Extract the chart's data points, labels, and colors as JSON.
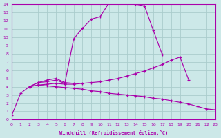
{
  "background_color": "#cce8e8",
  "line_color": "#aa00aa",
  "grid_color": "#aacccc",
  "xlabel": "Windchill (Refroidissement éolien,°C)",
  "xlim": [
    0,
    23
  ],
  "ylim": [
    0,
    14
  ],
  "xticks": [
    0,
    1,
    2,
    3,
    4,
    5,
    6,
    7,
    8,
    9,
    10,
    11,
    12,
    13,
    14,
    15,
    16,
    17,
    18,
    19,
    20,
    21,
    22,
    23
  ],
  "yticks": [
    0,
    1,
    2,
    3,
    4,
    5,
    6,
    7,
    8,
    9,
    10,
    11,
    12,
    13,
    14
  ],
  "curves": [
    {
      "x": [
        0,
        1,
        2,
        3,
        4,
        5,
        6,
        7,
        8,
        9,
        10,
        11,
        12,
        13,
        14,
        15,
        16,
        17
      ],
      "y": [
        0.5,
        3.2,
        4.0,
        4.5,
        4.6,
        4.8,
        4.4,
        9.8,
        11.1,
        12.2,
        12.5,
        14.2,
        14.3,
        14.3,
        14.0,
        13.8,
        10.8,
        7.9
      ]
    },
    {
      "x": [
        2,
        3,
        4,
        5,
        6,
        7
      ],
      "y": [
        4.0,
        4.5,
        4.8,
        5.0,
        4.5,
        4.4
      ]
    },
    {
      "x": [
        2,
        3,
        4,
        5,
        6,
        7,
        8,
        9,
        10,
        11,
        12,
        13,
        14,
        15,
        16,
        17,
        18,
        19,
        20
      ],
      "y": [
        4.0,
        4.2,
        4.3,
        4.4,
        4.3,
        4.3,
        4.4,
        4.5,
        4.6,
        4.8,
        5.0,
        5.3,
        5.6,
        5.9,
        6.3,
        6.7,
        7.2,
        7.6,
        4.8
      ]
    },
    {
      "x": [
        2,
        3,
        4,
        5,
        6,
        7,
        8,
        9,
        10,
        11,
        12,
        13,
        14,
        15,
        16,
        17,
        18,
        19,
        20,
        21,
        22,
        23
      ],
      "y": [
        4.0,
        4.2,
        4.1,
        4.0,
        3.9,
        3.8,
        3.7,
        3.5,
        3.4,
        3.2,
        3.1,
        3.0,
        2.9,
        2.8,
        2.6,
        2.5,
        2.3,
        2.1,
        1.9,
        1.6,
        1.3,
        1.2
      ]
    }
  ]
}
